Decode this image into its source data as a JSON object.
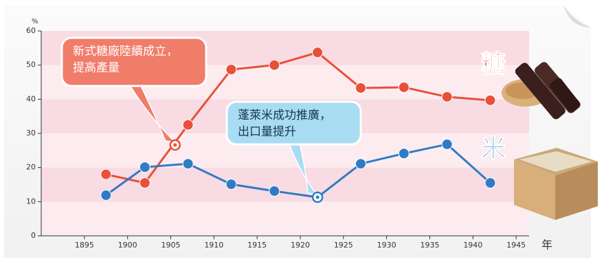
{
  "chart_data": {
    "type": "line",
    "y_label": "%",
    "x_label": "年",
    "xlim": [
      1890,
      1946.5
    ],
    "ylim": [
      0,
      60
    ],
    "xticks": [
      1895,
      1900,
      1905,
      1910,
      1915,
      1920,
      1925,
      1930,
      1935,
      1940,
      1945
    ],
    "yticks": [
      0,
      10,
      20,
      30,
      40,
      50,
      60
    ],
    "banded": true,
    "series": [
      {
        "name": "糖",
        "color": "#e8503a",
        "x": [
          1897.5,
          1902,
          1907,
          1912,
          1917,
          1922,
          1927,
          1932,
          1937,
          1942
        ],
        "values": [
          18,
          15.5,
          32.5,
          48.7,
          50,
          53.7,
          43.3,
          43.5,
          40.7,
          39.7
        ]
      },
      {
        "name": "米",
        "color": "#2f7cc4",
        "x": [
          1897.5,
          1902,
          1907,
          1912,
          1917,
          1922,
          1927,
          1932,
          1937,
          1942
        ],
        "values": [
          11.9,
          20.1,
          21.1,
          15.1,
          13.1,
          11.3,
          21.1,
          24.1,
          26.8,
          15.5
        ]
      }
    ],
    "annotations": [
      {
        "lines": [
          "新式糖廠陸續成立，",
          "提高產量"
        ],
        "x": 1905.5,
        "y": 26.6,
        "series": 0
      },
      {
        "lines": [
          "蓬萊米成功推廣，",
          "出口量提升"
        ],
        "x": 1922,
        "y": 11.3,
        "series": 1
      }
    ]
  }
}
